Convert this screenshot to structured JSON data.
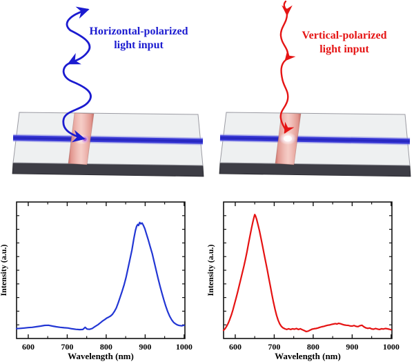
{
  "figure": {
    "top_left": {
      "label_line1": "Horizontal-polarized",
      "label_line2": "light input",
      "color": "#1b1bd0"
    },
    "top_right": {
      "label_line1": "Vertical-polarized",
      "label_line2": "light input",
      "color": "#e51414"
    }
  },
  "icons": {
    "left_arrow": "blue-horizontal-polarized-wave-arrow",
    "right_arrow": "red-vertical-polarized-wave-arrow",
    "left_device": "crossed-nanowire-chip-with-junction-glow",
    "right_device": "crossed-nanowire-chip-with-junction-glow"
  },
  "colors": {
    "blue_wave": "#1b1bd0",
    "red_wave": "#e51414",
    "blue_nanowire": "#3a3ad6",
    "red_nanowire": "#e89890",
    "chip_top": "#eef0f1",
    "chip_front": "#3d3d45"
  },
  "chart_data": [
    {
      "type": "line",
      "series_name": "horizontal-polarized input output spectrum",
      "color": "#2236d4",
      "xlabel": "Wavelength (nm)",
      "ylabel": "Intensity (a.u.)",
      "xlim": [
        570,
        1002
      ],
      "ylim": [
        0,
        1
      ],
      "x_major_ticks": [
        600,
        700,
        800,
        900,
        1000
      ],
      "x_minor_ticks": [
        650,
        750,
        850,
        950
      ],
      "grid": false,
      "legend": "none",
      "peak_nm": 880,
      "points": [
        [
          570,
          0.072
        ],
        [
          580,
          0.074
        ],
        [
          590,
          0.077
        ],
        [
          600,
          0.08
        ],
        [
          610,
          0.082
        ],
        [
          620,
          0.086
        ],
        [
          632,
          0.091
        ],
        [
          642,
          0.096
        ],
        [
          652,
          0.097
        ],
        [
          662,
          0.091
        ],
        [
          672,
          0.086
        ],
        [
          682,
          0.082
        ],
        [
          692,
          0.079
        ],
        [
          702,
          0.077
        ],
        [
          712,
          0.071
        ],
        [
          722,
          0.067
        ],
        [
          732,
          0.065
        ],
        [
          740,
          0.066
        ],
        [
          746,
          0.082
        ],
        [
          751,
          0.069
        ],
        [
          757,
          0.067
        ],
        [
          764,
          0.073
        ],
        [
          772,
          0.089
        ],
        [
          779,
          0.101
        ],
        [
          786,
          0.117
        ],
        [
          791,
          0.129
        ],
        [
          796,
          0.138
        ],
        [
          801,
          0.149
        ],
        [
          806,
          0.156
        ],
        [
          811,
          0.164
        ],
        [
          816,
          0.177
        ],
        [
          821,
          0.198
        ],
        [
          826,
          0.224
        ],
        [
          831,
          0.262
        ],
        [
          836,
          0.304
        ],
        [
          841,
          0.348
        ],
        [
          846,
          0.394
        ],
        [
          851,
          0.448
        ],
        [
          856,
          0.513
        ],
        [
          861,
          0.582
        ],
        [
          866,
          0.648
        ],
        [
          871,
          0.732
        ],
        [
          875,
          0.792
        ],
        [
          878,
          0.822
        ],
        [
          881,
          0.836
        ],
        [
          883,
          0.828
        ],
        [
          886,
          0.85
        ],
        [
          889,
          0.84
        ],
        [
          892,
          0.846
        ],
        [
          895,
          0.831
        ],
        [
          899,
          0.806
        ],
        [
          903,
          0.768
        ],
        [
          908,
          0.722
        ],
        [
          913,
          0.672
        ],
        [
          918,
          0.622
        ],
        [
          923,
          0.562
        ],
        [
          928,
          0.502
        ],
        [
          933,
          0.442
        ],
        [
          938,
          0.384
        ],
        [
          943,
          0.332
        ],
        [
          948,
          0.282
        ],
        [
          953,
          0.236
        ],
        [
          958,
          0.196
        ],
        [
          963,
          0.162
        ],
        [
          968,
          0.137
        ],
        [
          973,
          0.118
        ],
        [
          978,
          0.107
        ],
        [
          983,
          0.099
        ],
        [
          988,
          0.095
        ],
        [
          994,
          0.093
        ],
        [
          1000,
          0.097
        ]
      ]
    },
    {
      "type": "line",
      "series_name": "vertical-polarized input output spectrum",
      "color": "#e51212",
      "xlabel": "Wavelength (nm)",
      "ylabel": "Intensity (a.u.)",
      "xlim": [
        570,
        1002
      ],
      "ylim": [
        0,
        1
      ],
      "x_major_ticks": [
        600,
        700,
        800,
        900,
        1000
      ],
      "x_minor_ticks": [
        650,
        750,
        850,
        950
      ],
      "grid": false,
      "legend": "none",
      "peak_nm": 650,
      "points": [
        [
          570,
          0.06
        ],
        [
          574,
          0.072
        ],
        [
          578,
          0.09
        ],
        [
          582,
          0.112
        ],
        [
          586,
          0.14
        ],
        [
          590,
          0.172
        ],
        [
          594,
          0.21
        ],
        [
          598,
          0.252
        ],
        [
          602,
          0.295
        ],
        [
          606,
          0.338
        ],
        [
          610,
          0.386
        ],
        [
          614,
          0.434
        ],
        [
          618,
          0.48
        ],
        [
          622,
          0.528
        ],
        [
          626,
          0.578
        ],
        [
          630,
          0.634
        ],
        [
          634,
          0.694
        ],
        [
          638,
          0.754
        ],
        [
          642,
          0.812
        ],
        [
          645,
          0.852
        ],
        [
          648,
          0.888
        ],
        [
          650,
          0.908
        ],
        [
          652,
          0.898
        ],
        [
          655,
          0.872
        ],
        [
          658,
          0.838
        ],
        [
          662,
          0.79
        ],
        [
          666,
          0.736
        ],
        [
          670,
          0.678
        ],
        [
          674,
          0.62
        ],
        [
          678,
          0.562
        ],
        [
          682,
          0.504
        ],
        [
          686,
          0.444
        ],
        [
          690,
          0.384
        ],
        [
          694,
          0.324
        ],
        [
          698,
          0.266
        ],
        [
          702,
          0.214
        ],
        [
          706,
          0.17
        ],
        [
          710,
          0.134
        ],
        [
          714,
          0.108
        ],
        [
          718,
          0.09
        ],
        [
          722,
          0.079
        ],
        [
          727,
          0.071
        ],
        [
          732,
          0.066
        ],
        [
          737,
          0.071
        ],
        [
          742,
          0.066
        ],
        [
          747,
          0.071
        ],
        [
          752,
          0.068
        ],
        [
          757,
          0.073
        ],
        [
          762,
          0.066
        ],
        [
          767,
          0.071
        ],
        [
          772,
          0.064
        ],
        [
          777,
          0.058
        ],
        [
          782,
          0.051
        ],
        [
          787,
          0.054
        ],
        [
          792,
          0.061
        ],
        [
          797,
          0.068
        ],
        [
          802,
          0.071
        ],
        [
          807,
          0.073
        ],
        [
          812,
          0.077
        ],
        [
          817,
          0.082
        ],
        [
          822,
          0.086
        ],
        [
          827,
          0.089
        ],
        [
          832,
          0.093
        ],
        [
          837,
          0.097
        ],
        [
          842,
          0.099
        ],
        [
          847,
          0.103
        ],
        [
          852,
          0.106
        ],
        [
          857,
          0.109
        ],
        [
          861,
          0.106
        ],
        [
          865,
          0.111
        ],
        [
          870,
          0.108
        ],
        [
          875,
          0.103
        ],
        [
          880,
          0.099
        ],
        [
          885,
          0.097
        ],
        [
          890,
          0.096
        ],
        [
          895,
          0.092
        ],
        [
          900,
          0.091
        ],
        [
          905,
          0.095
        ],
        [
          910,
          0.089
        ],
        [
          915,
          0.087
        ],
        [
          920,
          0.094
        ],
        [
          925,
          0.097
        ],
        [
          930,
          0.086
        ],
        [
          935,
          0.078
        ],
        [
          940,
          0.074
        ],
        [
          945,
          0.077
        ],
        [
          950,
          0.07
        ],
        [
          955,
          0.068
        ],
        [
          960,
          0.073
        ],
        [
          965,
          0.069
        ],
        [
          970,
          0.066
        ],
        [
          975,
          0.071
        ],
        [
          980,
          0.069
        ],
        [
          985,
          0.073
        ],
        [
          990,
          0.071
        ],
        [
          995,
          0.068
        ],
        [
          1000,
          0.064
        ]
      ]
    }
  ]
}
